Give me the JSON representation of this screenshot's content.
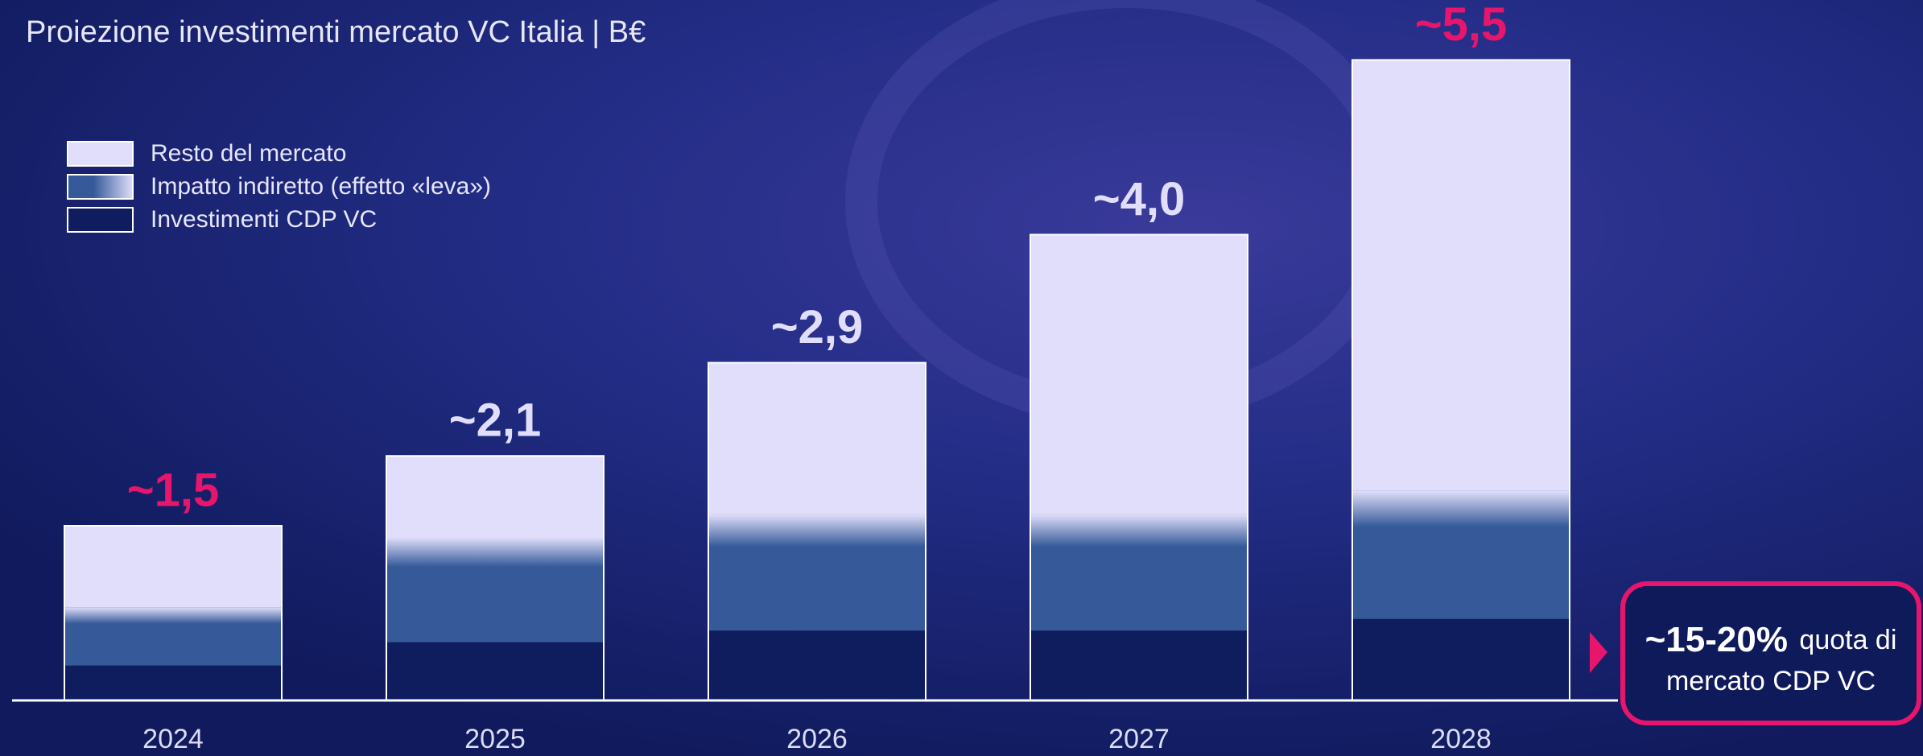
{
  "chart_data": {
    "type": "stacked-bar",
    "title": "Proiezione investimenti mercato VC Italia | B€",
    "categories": [
      "2024",
      "2025",
      "2026",
      "2027",
      "2028"
    ],
    "series": [
      {
        "name": "Investimenti CDP VC",
        "color": "#0f1d5e",
        "values": [
          0.3,
          0.5,
          0.6,
          0.6,
          0.7
        ]
      },
      {
        "name": "Impatto indiretto (effetto «leva»)",
        "color": "#365a99",
        "values": [
          0.5,
          0.9,
          1.0,
          1.0,
          1.1
        ]
      },
      {
        "name": "Resto del mercato",
        "color": "#e0defa",
        "values": [
          0.7,
          0.7,
          1.3,
          2.4,
          3.7
        ]
      }
    ],
    "totals": [
      1.5,
      2.1,
      2.9,
      4.0,
      5.5
    ],
    "total_labels": [
      "~1,5",
      "~2,1",
      "~2,9",
      "~4,0",
      "~5,5"
    ],
    "total_label_colors": [
      "#e8156c",
      "#e0defa",
      "#e0defa",
      "#e0defa",
      "#e8156c"
    ],
    "ylim": [
      0,
      5.6
    ],
    "legend": "top-left",
    "callout": {
      "highlight": "~15-20%",
      "text_line1": "quota di",
      "text_line2": "mercato CDP VC"
    }
  }
}
